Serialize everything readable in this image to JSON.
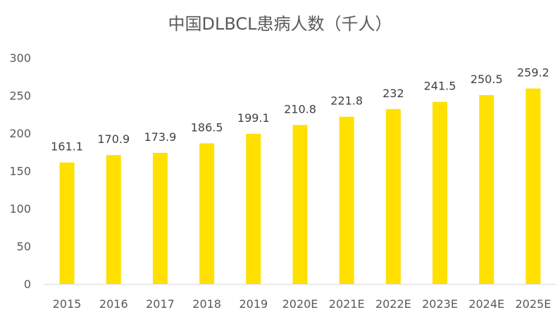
{
  "chart_data": {
    "type": "bar",
    "title": "中国DLBCL患病人数（千人）",
    "categories": [
      "2015",
      "2016",
      "2017",
      "2018",
      "2019",
      "2020E",
      "2021E",
      "2022E",
      "2023E",
      "2024E",
      "2025E"
    ],
    "values": [
      161.1,
      170.9,
      173.9,
      186.5,
      199.1,
      210.8,
      221.8,
      232,
      241.5,
      250.5,
      259.2
    ],
    "value_labels": [
      "161.1",
      "170.9",
      "173.9",
      "186.5",
      "199.1",
      "210.8",
      "221.8",
      "232",
      "241.5",
      "250.5",
      "259.2"
    ],
    "ylim": [
      0,
      300
    ],
    "yticks": [
      "0",
      "50",
      "100",
      "150",
      "200",
      "250",
      "300"
    ],
    "xlabel": "",
    "ylabel": "",
    "grid": false,
    "legend": "none",
    "bar_color": "#FFE000"
  }
}
